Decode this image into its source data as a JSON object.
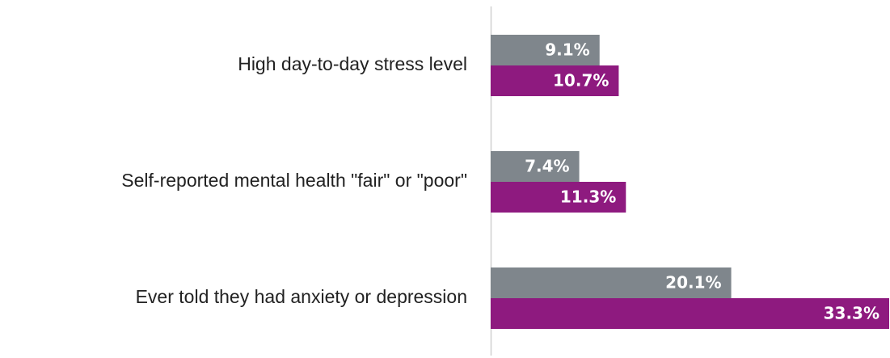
{
  "chart_data": {
    "type": "bar",
    "orientation": "horizontal",
    "categories": [
      "High day-to-day stress level",
      "Self-reported mental health \"fair\" or \"poor\"",
      "Ever told they had anxiety or depression"
    ],
    "series": [
      {
        "color": "#7f868c",
        "values": [
          9.1,
          7.4,
          20.1
        ],
        "value_labels": [
          "9.1%",
          "7.4%",
          "20.1%"
        ]
      },
      {
        "color": "#8e1a7f",
        "values": [
          10.7,
          11.3,
          33.3
        ],
        "value_labels": [
          "10.7%",
          "11.3%",
          "33.3%"
        ]
      }
    ]
  }
}
